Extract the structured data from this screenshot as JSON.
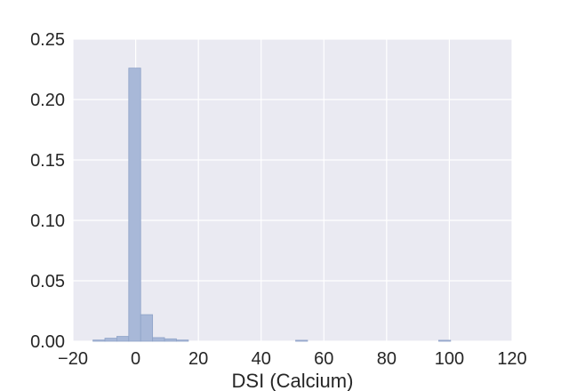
{
  "chart_data": {
    "type": "bar",
    "title": "",
    "xlabel": "DSI (Calcium)",
    "ylabel": "",
    "xlim": [
      -20,
      120
    ],
    "ylim": [
      0,
      0.25
    ],
    "xticks": [
      -20,
      0,
      20,
      40,
      60,
      80,
      100,
      120
    ],
    "yticks": [
      0.0,
      0.05,
      0.1,
      0.15,
      0.2,
      0.25
    ],
    "xtick_labels": [
      "−20",
      "0",
      "20",
      "40",
      "60",
      "80",
      "100",
      "120"
    ],
    "ytick_labels": [
      "0.00",
      "0.05",
      "0.10",
      "0.15",
      "0.20",
      "0.25"
    ],
    "grid": true,
    "bin_width": 3.8,
    "series": [
      {
        "bins": [
          {
            "x0": -13.6,
            "x1": -9.8,
            "value": 0.001
          },
          {
            "x0": -9.8,
            "x1": -6.0,
            "value": 0.0025
          },
          {
            "x0": -6.0,
            "x1": -2.2,
            "value": 0.004
          },
          {
            "x0": -2.2,
            "x1": 1.6,
            "value": 0.226
          },
          {
            "x0": 1.6,
            "x1": 5.4,
            "value": 0.022
          },
          {
            "x0": 5.4,
            "x1": 9.2,
            "value": 0.003
          },
          {
            "x0": 9.2,
            "x1": 13.0,
            "value": 0.002
          },
          {
            "x0": 13.0,
            "x1": 16.8,
            "value": 0.001
          },
          {
            "x0": 51.0,
            "x1": 54.8,
            "value": 0.0008
          },
          {
            "x0": 96.6,
            "x1": 100.4,
            "value": 0.0008
          }
        ]
      }
    ],
    "colors": {
      "plot_background": "#eaeaf2",
      "grid": "#ffffff",
      "bar_fill": "#a8b8d8",
      "bar_edge": "#8fa3c8",
      "text": "#262626"
    }
  }
}
